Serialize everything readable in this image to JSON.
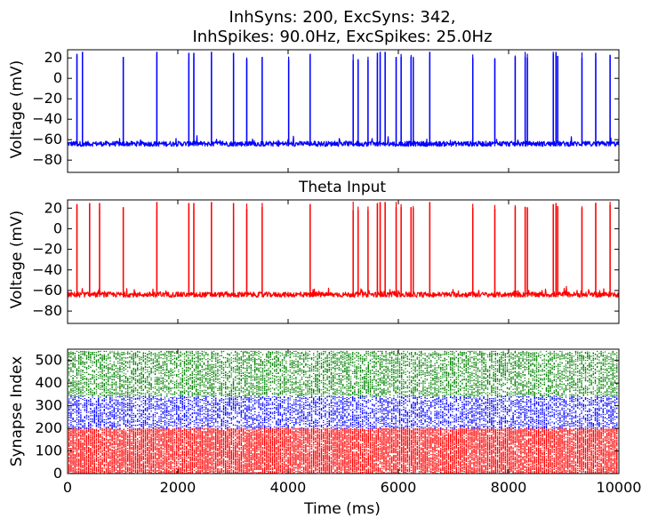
{
  "chart_data": [
    {
      "type": "line",
      "title_line1": "InhSyns: 200, ExcSyns: 342,",
      "title_line2": "InhSpikes: 90.0Hz, ExcSpikes: 25.0Hz",
      "ylabel": "Voltage (mV)",
      "xlim": [
        0,
        10000
      ],
      "ylim": [
        -92,
        28
      ],
      "yticks": [
        20,
        0,
        -20,
        -40,
        -60,
        -80
      ],
      "ytick_labels": [
        "20",
        "0",
        "−20",
        "−40",
        "−60",
        "−80"
      ],
      "color": "#0000ff",
      "baseline_mv": -64,
      "peak_mv": 26,
      "spike_times_ms": [
        170,
        270,
        1010,
        1620,
        2200,
        2290,
        2610,
        3010,
        3250,
        3530,
        4010,
        4400,
        5180,
        5270,
        5450,
        5620,
        5670,
        5760,
        5960,
        6050,
        6230,
        6270,
        6570,
        7350,
        7750,
        8120,
        8300,
        8340,
        8810,
        8860,
        8890,
        9330,
        9580,
        9840
      ]
    },
    {
      "type": "line",
      "title": "Theta Input",
      "ylabel": "Voltage (mV)",
      "xlim": [
        0,
        10000
      ],
      "ylim": [
        -92,
        28
      ],
      "yticks": [
        20,
        0,
        -20,
        -40,
        -60,
        -80
      ],
      "ytick_labels": [
        "20",
        "0",
        "−20",
        "−40",
        "−60",
        "−80"
      ],
      "color": "#ff0000",
      "baseline_mv": -64,
      "peak_mv": 26,
      "spike_times_ms": [
        170,
        400,
        580,
        1010,
        1620,
        2200,
        2290,
        2610,
        3010,
        3250,
        3530,
        4400,
        5180,
        5270,
        5450,
        5620,
        5670,
        5760,
        5960,
        6050,
        6230,
        6270,
        6570,
        7350,
        7750,
        8120,
        8300,
        8340,
        8810,
        8860,
        8890,
        9330,
        9580,
        9840
      ]
    },
    {
      "type": "scatter",
      "ylabel": "Synapse Index",
      "xlabel": "Time (ms)",
      "xlim": [
        0,
        10000
      ],
      "ylim": [
        0,
        550
      ],
      "yticks": [
        0,
        100,
        200,
        300,
        400,
        500
      ],
      "xticks": [
        0,
        2000,
        4000,
        6000,
        8000,
        10000
      ],
      "groups": [
        {
          "range": [
            0,
            200
          ],
          "color": "#ff0000"
        },
        {
          "range": [
            200,
            342
          ],
          "color": "#0000ff"
        },
        {
          "range": [
            342,
            542
          ],
          "color": "#008000"
        }
      ]
    }
  ]
}
